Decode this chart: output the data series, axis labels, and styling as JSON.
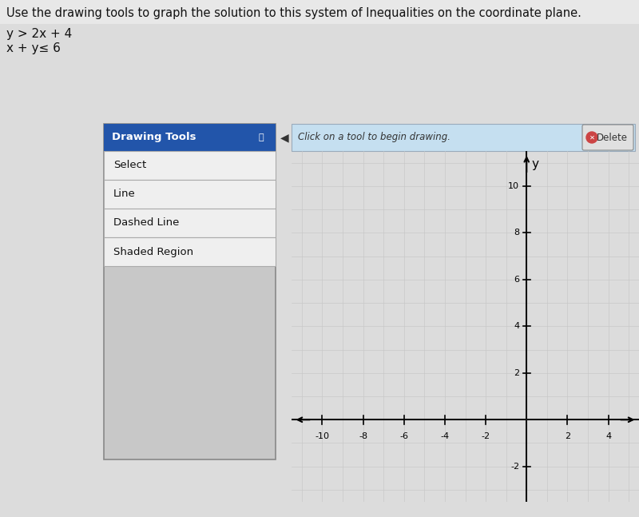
{
  "title_text": "Use the drawing tools to graph the solution to this system of Inequalities on the coordinate plane.",
  "eq1": "y > 2x + 4",
  "eq2": "x + y≤ 6",
  "bg_color": "#dcdcdc",
  "panel_bg": "#c8c8c8",
  "toolbar_header_bg": "#2255aa",
  "toolbar_header_text": "Drawing Tools",
  "toolbar_header_color": "#ffffff",
  "toolbar_items": [
    "Select",
    "Line",
    "Dashed Line",
    "Shaded Region"
  ],
  "toolbar_item_bg": "#f0f0f0",
  "toolbar_border": "#aaaaaa",
  "topbar_bg": "#b8d8ee",
  "topbar_text": "Click on a tool to begin drawing.",
  "delete_btn_text": "Delete",
  "grid_color": "#c8c8c8",
  "axis_color": "#111111",
  "grid_bg": "#eeeeee",
  "x_ticks": [
    -10,
    -8,
    -6,
    -4,
    -2,
    2,
    4
  ],
  "y_ticks": [
    -2,
    2,
    4,
    6,
    8,
    10
  ],
  "xlim": [
    -11.5,
    5.5
  ],
  "ylim": [
    -3.5,
    11.5
  ],
  "title_fontsize": 10.5,
  "eq_fontsize": 11
}
